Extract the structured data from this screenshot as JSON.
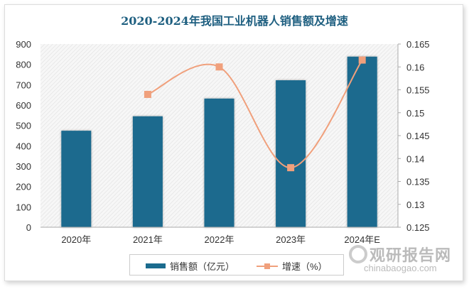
{
  "chart_data": {
    "type": "bar+line",
    "title": "2020-2024年我国工业机器人销售额及增速",
    "categories": [
      "2020年",
      "2021年",
      "2022年",
      "2023年",
      "2024年E"
    ],
    "series": [
      {
        "name": "销售额（亿元）",
        "type": "bar",
        "axis": "left",
        "values": [
          474,
          545,
          632,
          722,
          838
        ],
        "color": "#1b6b8e"
      },
      {
        "name": "增速（%）",
        "type": "line",
        "axis": "right",
        "smooth": true,
        "values": [
          null,
          0.154,
          0.16,
          0.138,
          0.1615
        ],
        "color": "#f0a07c"
      }
    ],
    "yleft": {
      "ylim": [
        0,
        900
      ],
      "ticks": [
        "0",
        "100",
        "200",
        "300",
        "400",
        "500",
        "600",
        "700",
        "800",
        "900"
      ]
    },
    "yright": {
      "ylim": [
        0.125,
        0.165
      ],
      "ticks": [
        "0.125",
        "0.13",
        "0.135",
        "0.14",
        "0.145",
        "0.15",
        "0.155",
        "0.16",
        "0.165"
      ]
    },
    "legend": "bottom",
    "grid": false
  },
  "watermark": {
    "name": "观研报告网",
    "url": "chinabaogao.com"
  }
}
